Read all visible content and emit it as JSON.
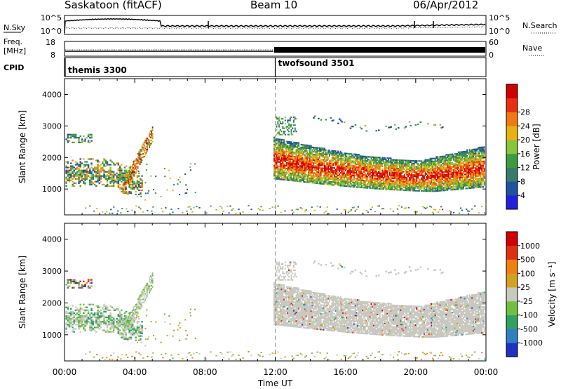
{
  "header": {
    "station": "Saskatoon (fitACF)",
    "beam": "Beam 10",
    "date": "06/Apr/2012"
  },
  "strips": {
    "nsky": {
      "label": "N.Sky",
      "ticks": [
        "10^5",
        "10^0"
      ]
    },
    "nsearch": {
      "label": "N.Search",
      "ticks": [
        "10^5",
        "10^0"
      ]
    },
    "freq": {
      "label": "Freq.",
      "unit": "[MHz]",
      "ticks": [
        "18",
        "8"
      ]
    },
    "nave": {
      "label": "Nave",
      "ticks": [
        "60",
        "0"
      ]
    },
    "cpid": {
      "label": "CPID",
      "programs": [
        {
          "name": "themis 3300",
          "start_hour": 0
        },
        {
          "name": "twofsound 3501",
          "start_hour": 12
        }
      ]
    }
  },
  "chart_data": [
    {
      "type": "heatmap",
      "title": "",
      "ylabel": "Slant Range [km]",
      "xlabel": "",
      "ylim": [
        180,
        4500
      ],
      "yticks": [
        1000,
        2000,
        3000,
        4000
      ],
      "xlim": [
        0,
        24
      ],
      "colorbar": {
        "label": "Power [dB]",
        "range": [
          0,
          32
        ],
        "ticks": [
          "4",
          "8",
          "12",
          "16",
          "20",
          "24",
          "28"
        ],
        "colors": [
          "#2020e0",
          "#2050a0",
          "#3a7a6a",
          "#3e9a3e",
          "#8ac43a",
          "#e8b010",
          "#f07a10",
          "#e83010",
          "#d00000"
        ]
      }
    },
    {
      "type": "heatmap",
      "title": "",
      "ylabel": "Slant Range [km]",
      "xlabel": "Time UT",
      "ylim": [
        180,
        4500
      ],
      "yticks": [
        1000,
        2000,
        3000,
        4000
      ],
      "xlim": [
        0,
        24
      ],
      "xticks": [
        "00:00",
        "04:00",
        "08:00",
        "12:00",
        "16:00",
        "20:00",
        "00:00"
      ],
      "colorbar": {
        "label": "Velocity [m s⁻¹]",
        "ticks": [
          "1000",
          "500",
          "100",
          "25",
          "-25",
          "-100",
          "-500",
          "-1000"
        ],
        "colors": [
          "#2030c0",
          "#3080c0",
          "#30a060",
          "#70c040",
          "#c8c8c0",
          "#d4a020",
          "#f08010",
          "#e03010",
          "#d00000"
        ]
      }
    }
  ]
}
